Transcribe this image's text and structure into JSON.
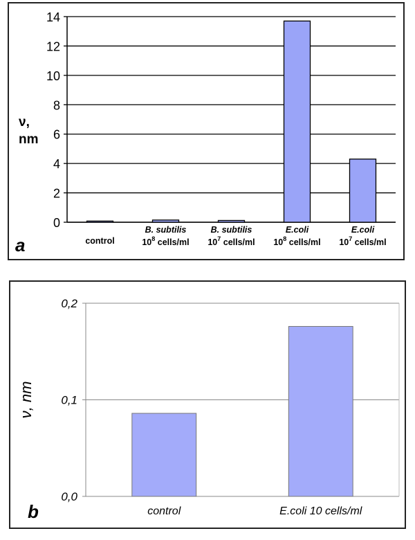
{
  "chart_data": [
    {
      "type": "bar",
      "panel_label": "a",
      "categories": [
        {
          "lines": [
            {
              "text": "control",
              "italic": false
            }
          ]
        },
        {
          "lines": [
            {
              "text": "B. subtilis",
              "italic": true
            },
            {
              "text": "10",
              "sup": "8",
              "rest": " cells/ml"
            }
          ]
        },
        {
          "lines": [
            {
              "text": "B. subtilis",
              "italic": true
            },
            {
              "text": "10",
              "sup": "7",
              "rest": " cells/ml"
            }
          ]
        },
        {
          "lines": [
            {
              "text": "E.coli",
              "italic": true
            },
            {
              "text": "10",
              "sup": "8",
              "rest": " cells/ml"
            }
          ]
        },
        {
          "lines": [
            {
              "text": "E.coli",
              "italic": true
            },
            {
              "text": "10",
              "sup": "7",
              "rest": " cells/ml"
            }
          ]
        }
      ],
      "values": [
        0.08,
        0.15,
        0.12,
        13.7,
        4.3
      ],
      "ylabel_lines": [
        "ν,",
        "nm"
      ],
      "ylim": [
        0,
        14
      ],
      "yticks": [
        "0",
        "2",
        "4",
        "6",
        "8",
        "10",
        "12",
        "14"
      ],
      "grid": true,
      "bar_color": "#9aa4f8"
    },
    {
      "type": "bar",
      "panel_label": "b",
      "categories": [
        "control",
        "E.coli  10  cells/ml"
      ],
      "values": [
        0.086,
        0.176
      ],
      "ylabel": "ν, nm",
      "ylim": [
        0,
        0.2
      ],
      "yticks": [
        "0,0",
        "0,1",
        "0,2"
      ],
      "grid": true,
      "bar_color": "#a3abfa"
    }
  ]
}
